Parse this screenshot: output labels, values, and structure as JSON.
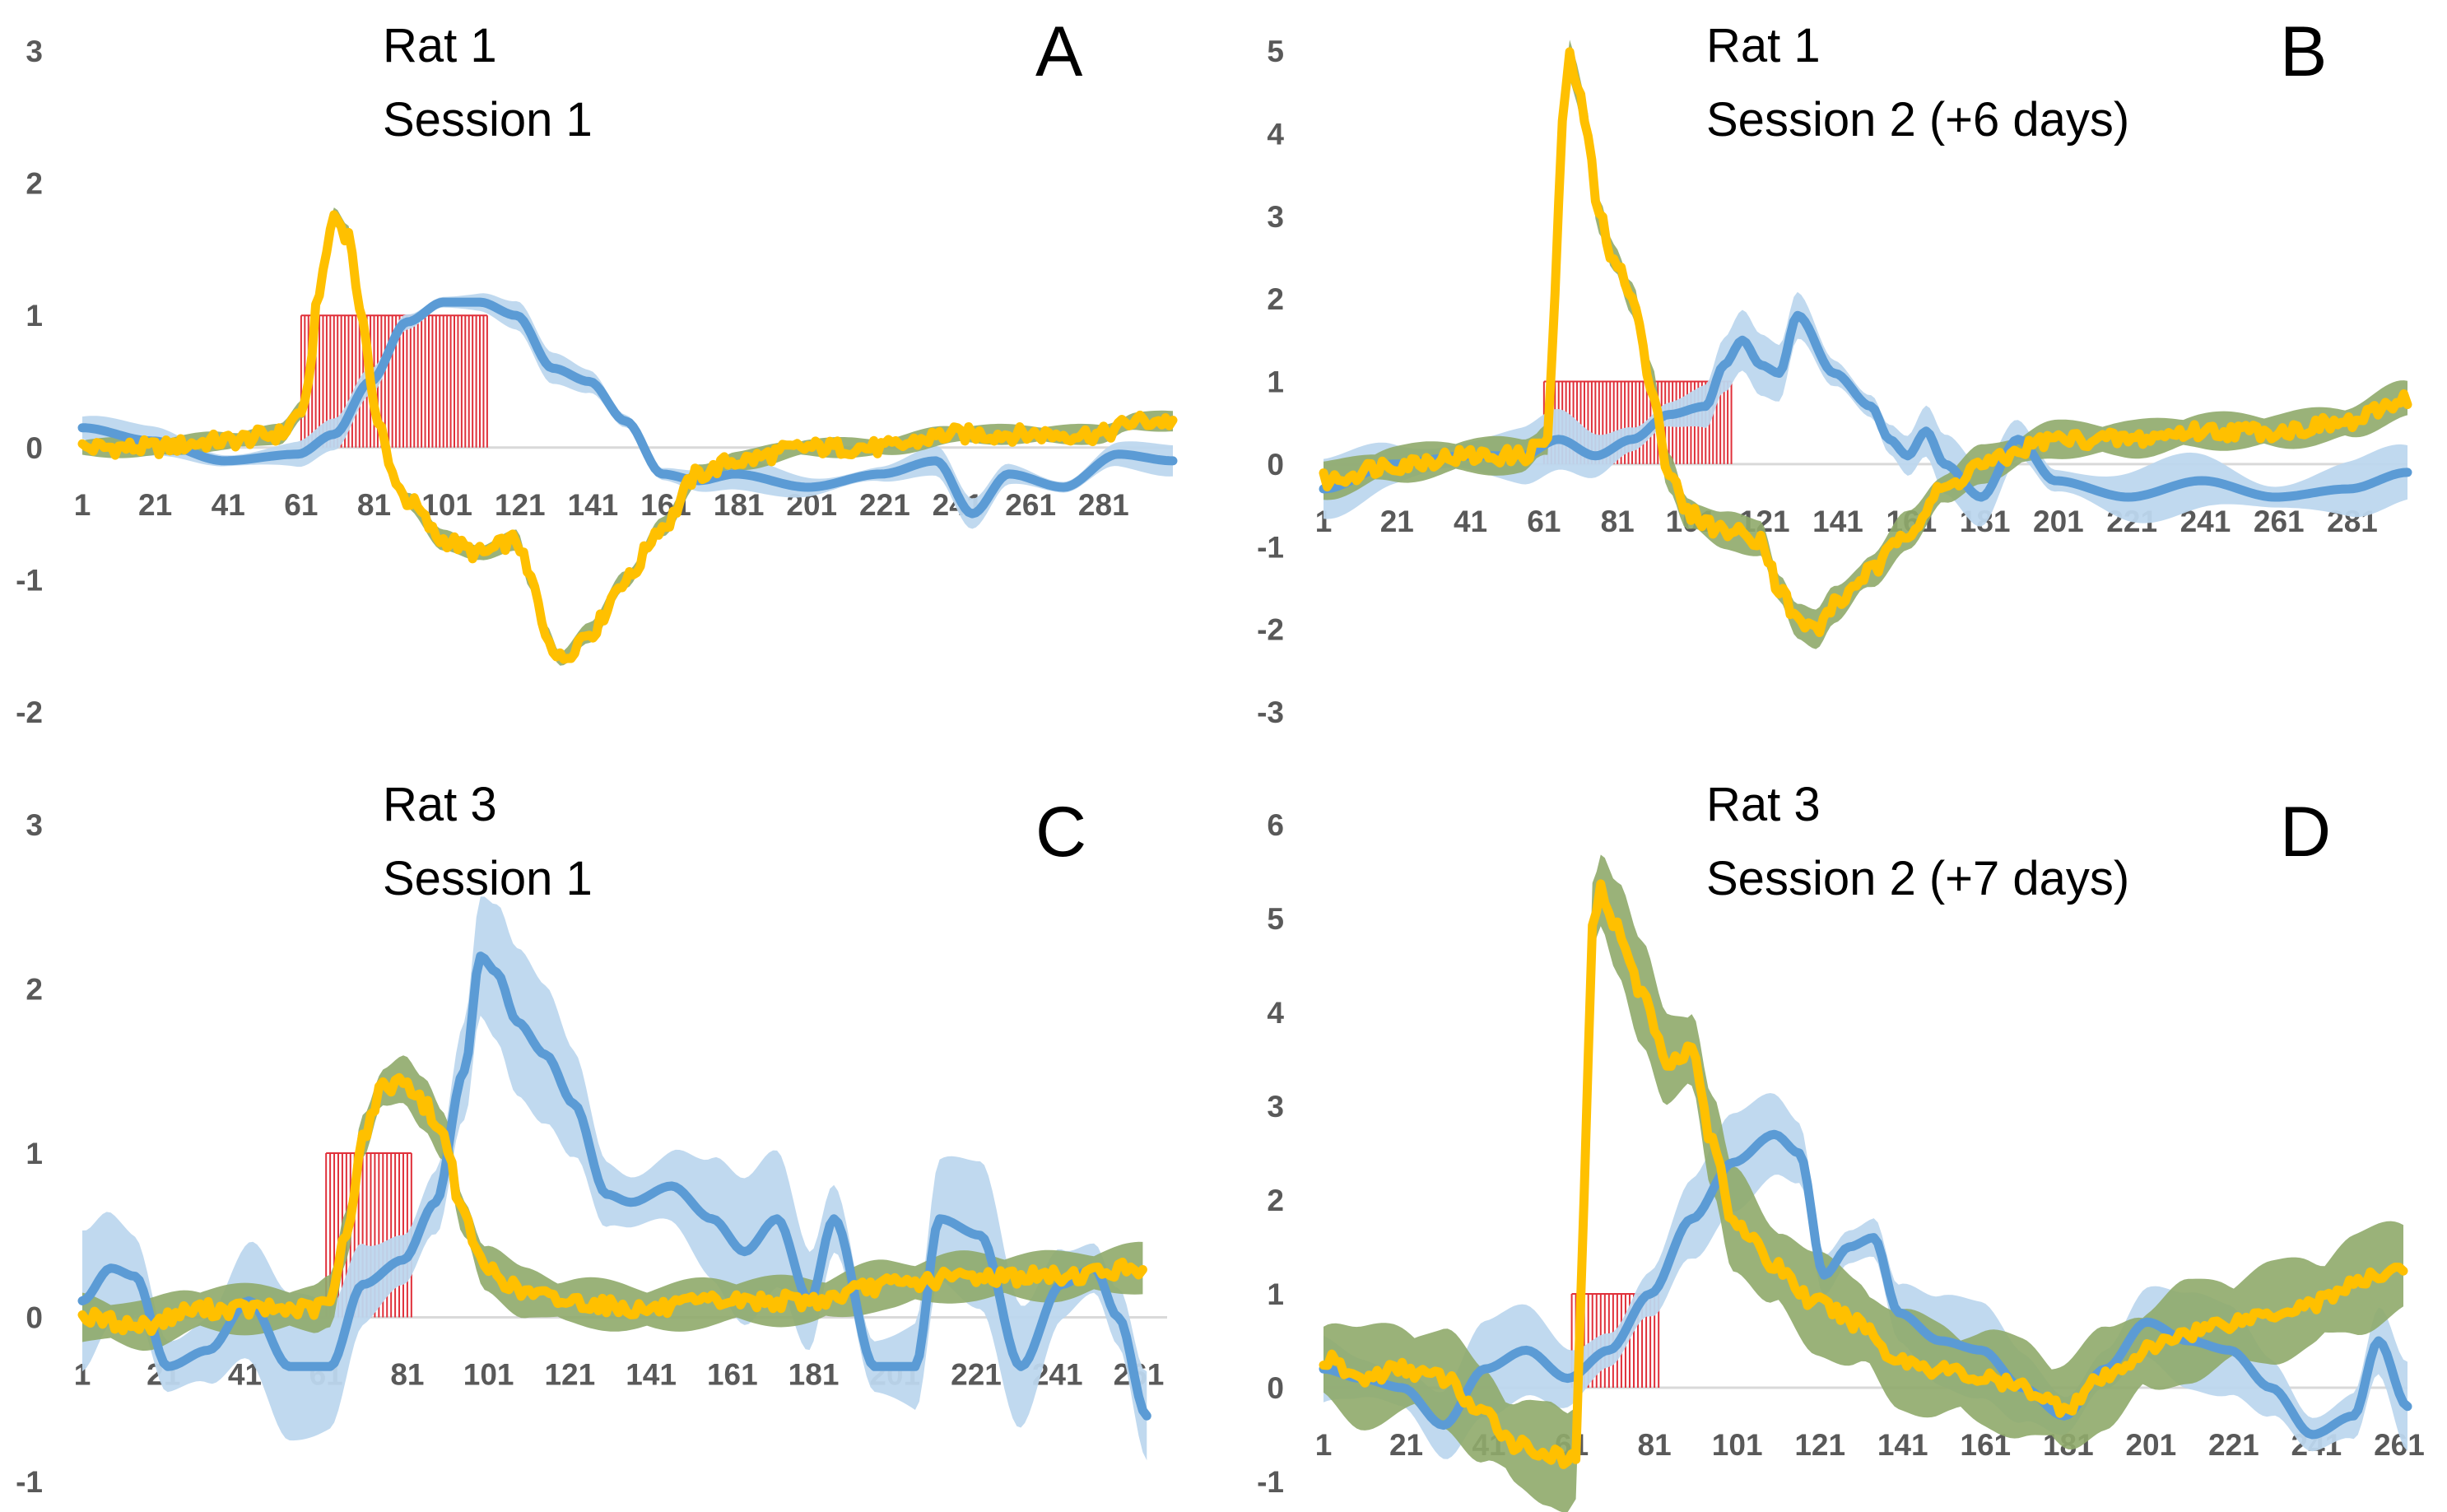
{
  "colors": {
    "blue_line": "#5b9bd5",
    "blue_band": "#bdd7ee",
    "yellow_line": "#ffc000",
    "green_band": "#8faa6a",
    "stim_bars": "#e0303a",
    "zero_line": "#d9d9d9",
    "tick_text": "#595959"
  },
  "chart_data": [
    {
      "panel": "A",
      "type": "line",
      "title_line1": "Rat 1",
      "title_line2": "Session 1",
      "ylim": [
        -2,
        3
      ],
      "y_ticks": [
        "3",
        "2",
        "1",
        "0",
        "-1",
        "-2"
      ],
      "xlim": [
        1,
        300
      ],
      "x_ticks": [
        "1",
        "21",
        "41",
        "61",
        "81",
        "101",
        "121",
        "141",
        "161",
        "181",
        "201",
        "221",
        "241",
        "261",
        "281"
      ],
      "stim_window": [
        61,
        112
      ],
      "stim_height": 1,
      "blue_band_halfwidth": 0.08,
      "green_band_halfwidth": 0.05,
      "series": [
        {
          "name": "blue",
          "x": [
            1,
            20,
            40,
            60,
            70,
            80,
            90,
            100,
            110,
            120,
            130,
            140,
            150,
            160,
            170,
            180,
            200,
            220,
            235,
            245,
            255,
            270,
            285,
            300
          ],
          "values": [
            0.15,
            0.05,
            -0.1,
            -0.05,
            0.1,
            0.5,
            0.95,
            1.1,
            1.1,
            1.0,
            0.6,
            0.5,
            0.2,
            -0.2,
            -0.25,
            -0.2,
            -0.3,
            -0.2,
            -0.1,
            -0.5,
            -0.2,
            -0.3,
            -0.05,
            -0.1
          ]
        },
        {
          "name": "yellow",
          "x": [
            1,
            20,
            40,
            55,
            62,
            66,
            70,
            74,
            78,
            82,
            86,
            90,
            100,
            110,
            120,
            124,
            128,
            132,
            140,
            150,
            160,
            170,
            180,
            200,
            220,
            240,
            260,
            280,
            290,
            300
          ],
          "values": [
            0.0,
            0.0,
            0.05,
            0.1,
            0.3,
            1.2,
            1.75,
            1.6,
            0.9,
            0.2,
            -0.2,
            -0.4,
            -0.7,
            -0.8,
            -0.7,
            -1.0,
            -1.4,
            -1.6,
            -1.4,
            -1.0,
            -0.6,
            -0.2,
            -0.1,
            0.0,
            0.0,
            0.1,
            0.1,
            0.1,
            0.2,
            0.2
          ]
        }
      ]
    },
    {
      "panel": "B",
      "type": "line",
      "title_line1": "Rat 1",
      "title_line2": "Session 2 (+6 days)",
      "ylim": [
        -3,
        5
      ],
      "y_ticks": [
        "5",
        "4",
        "3",
        "2",
        "1",
        "0",
        "-1",
        "-2",
        "-3"
      ],
      "xlim": [
        1,
        296
      ],
      "x_ticks": [
        "1",
        "21",
        "41",
        "61",
        "81",
        "101",
        "121",
        "141",
        "161",
        "181",
        "201",
        "221",
        "241",
        "261",
        "281"
      ],
      "stim_window": [
        61,
        112
      ],
      "stim_height": 1,
      "blue_band_halfwidth": 0.25,
      "green_band_halfwidth": 0.15,
      "series": [
        {
          "name": "blue",
          "x": [
            1,
            20,
            40,
            55,
            65,
            75,
            85,
            95,
            105,
            110,
            115,
            120,
            125,
            130,
            140,
            150,
            155,
            160,
            165,
            170,
            180,
            190,
            200,
            220,
            240,
            260,
            280,
            296
          ],
          "values": [
            -0.3,
            0.0,
            0.1,
            0.1,
            0.3,
            0.1,
            0.3,
            0.6,
            0.7,
            1.2,
            1.5,
            1.2,
            1.1,
            1.8,
            1.1,
            0.7,
            0.3,
            0.1,
            0.4,
            0.0,
            -0.4,
            0.3,
            -0.2,
            -0.4,
            -0.2,
            -0.4,
            -0.3,
            -0.1
          ]
        },
        {
          "name": "yellow",
          "x": [
            1,
            20,
            40,
            55,
            62,
            64,
            66,
            68,
            70,
            72,
            76,
            80,
            85,
            90,
            95,
            100,
            110,
            120,
            125,
            130,
            135,
            140,
            150,
            160,
            170,
            180,
            200,
            220,
            240,
            260,
            280,
            296
          ],
          "values": [
            -0.2,
            0.0,
            0.1,
            0.1,
            0.3,
            2.0,
            4.2,
            4.9,
            4.6,
            4.2,
            3.0,
            2.5,
            2.0,
            1.0,
            -0.1,
            -0.6,
            -0.8,
            -0.9,
            -1.5,
            -1.9,
            -2.0,
            -1.7,
            -1.3,
            -0.8,
            -0.3,
            0.0,
            0.3,
            0.3,
            0.4,
            0.4,
            0.5,
            0.8
          ]
        }
      ]
    },
    {
      "panel": "C",
      "type": "line",
      "title_line1": "Rat 3",
      "title_line2": "Session 1",
      "ylim": [
        -1,
        3
      ],
      "y_ticks": [
        "3",
        "2",
        "1",
        "0",
        "-1"
      ],
      "xlim": [
        1,
        268
      ],
      "x_ticks": [
        "1",
        "21",
        "41",
        "61",
        "81",
        "101",
        "121",
        "141",
        "161",
        "181",
        "201",
        "221",
        "241",
        "261"
      ],
      "stim_window": [
        61,
        82
      ],
      "stim_height": 1,
      "blue_band_halfwidth": 0.3,
      "green_band_halfwidth": 0.1,
      "series": [
        {
          "name": "blue",
          "x": [
            1,
            8,
            14,
            22,
            32,
            42,
            52,
            62,
            70,
            80,
            88,
            95,
            99,
            103,
            108,
            115,
            122,
            130,
            136,
            146,
            156,
            164,
            172,
            180,
            186,
            196,
            206,
            212,
            222,
            232,
            242,
            250,
            256,
            263
          ],
          "values": [
            0.1,
            0.3,
            0.25,
            -0.3,
            -0.2,
            0.1,
            -0.3,
            -0.3,
            0.2,
            0.35,
            0.7,
            1.5,
            2.2,
            2.1,
            1.8,
            1.6,
            1.3,
            0.75,
            0.7,
            0.8,
            0.6,
            0.4,
            0.6,
            0.1,
            0.6,
            -0.3,
            -0.3,
            0.6,
            0.5,
            -0.3,
            0.2,
            0.3,
            0.0,
            -0.6
          ]
        },
        {
          "name": "yellow",
          "x": [
            1,
            15,
            30,
            45,
            58,
            62,
            66,
            70,
            75,
            80,
            85,
            90,
            95,
            100,
            110,
            120,
            140,
            160,
            180,
            200,
            220,
            240,
            262
          ],
          "values": [
            0.0,
            -0.05,
            0.05,
            0.05,
            0.05,
            0.1,
            0.5,
            1.1,
            1.4,
            1.45,
            1.3,
            1.1,
            0.6,
            0.3,
            0.15,
            0.1,
            0.05,
            0.1,
            0.1,
            0.2,
            0.25,
            0.25,
            0.3
          ]
        }
      ]
    },
    {
      "panel": "D",
      "type": "line",
      "title_line1": "Rat 3",
      "title_line2": "Session 2 (+7 days)",
      "ylim": [
        -1,
        6
      ],
      "y_ticks": [
        "6",
        "5",
        "4",
        "3",
        "2",
        "1",
        "0",
        "-1"
      ],
      "xlim": [
        1,
        263
      ],
      "x_ticks": [
        "1",
        "21",
        "41",
        "61",
        "81",
        "101",
        "121",
        "141",
        "161",
        "181",
        "201",
        "221",
        "241",
        "261"
      ],
      "stim_window": [
        61,
        82
      ],
      "stim_height": 1,
      "blue_band_halfwidth": 0.35,
      "green_band_halfwidth": 0.35,
      "series": [
        {
          "name": "blue",
          "x": [
            1,
            10,
            20,
            30,
            40,
            50,
            60,
            70,
            80,
            90,
            100,
            110,
            116,
            122,
            128,
            134,
            140,
            150,
            160,
            170,
            180,
            190,
            200,
            210,
            220,
            230,
            240,
            250,
            256,
            263
          ],
          "values": [
            0.2,
            0.1,
            0.0,
            -0.4,
            0.2,
            0.4,
            0.1,
            0.4,
            1.0,
            1.8,
            2.4,
            2.7,
            2.5,
            1.2,
            1.5,
            1.6,
            0.8,
            0.5,
            0.4,
            0.0,
            -0.3,
            0.2,
            0.7,
            0.5,
            0.4,
            0.0,
            -0.5,
            -0.3,
            0.5,
            -0.2
          ]
        },
        {
          "name": "yellow",
          "x": [
            1,
            10,
            20,
            30,
            40,
            48,
            55,
            60,
            62,
            64,
            66,
            68,
            72,
            78,
            84,
            90,
            95,
            100,
            110,
            120,
            130,
            140,
            150,
            160,
            170,
            180,
            190,
            200,
            210,
            220,
            230,
            240,
            250,
            262
          ],
          "values": [
            0.3,
            0.1,
            0.2,
            0.1,
            -0.3,
            -0.6,
            -0.7,
            -0.8,
            -0.7,
            2.0,
            5.0,
            5.3,
            4.9,
            4.2,
            3.5,
            3.6,
            2.6,
            1.8,
            1.3,
            0.9,
            0.7,
            0.3,
            0.2,
            0.1,
            0.0,
            -0.2,
            0.1,
            0.4,
            0.6,
            0.7,
            0.8,
            0.9,
            1.1,
            1.3
          ]
        }
      ]
    }
  ]
}
